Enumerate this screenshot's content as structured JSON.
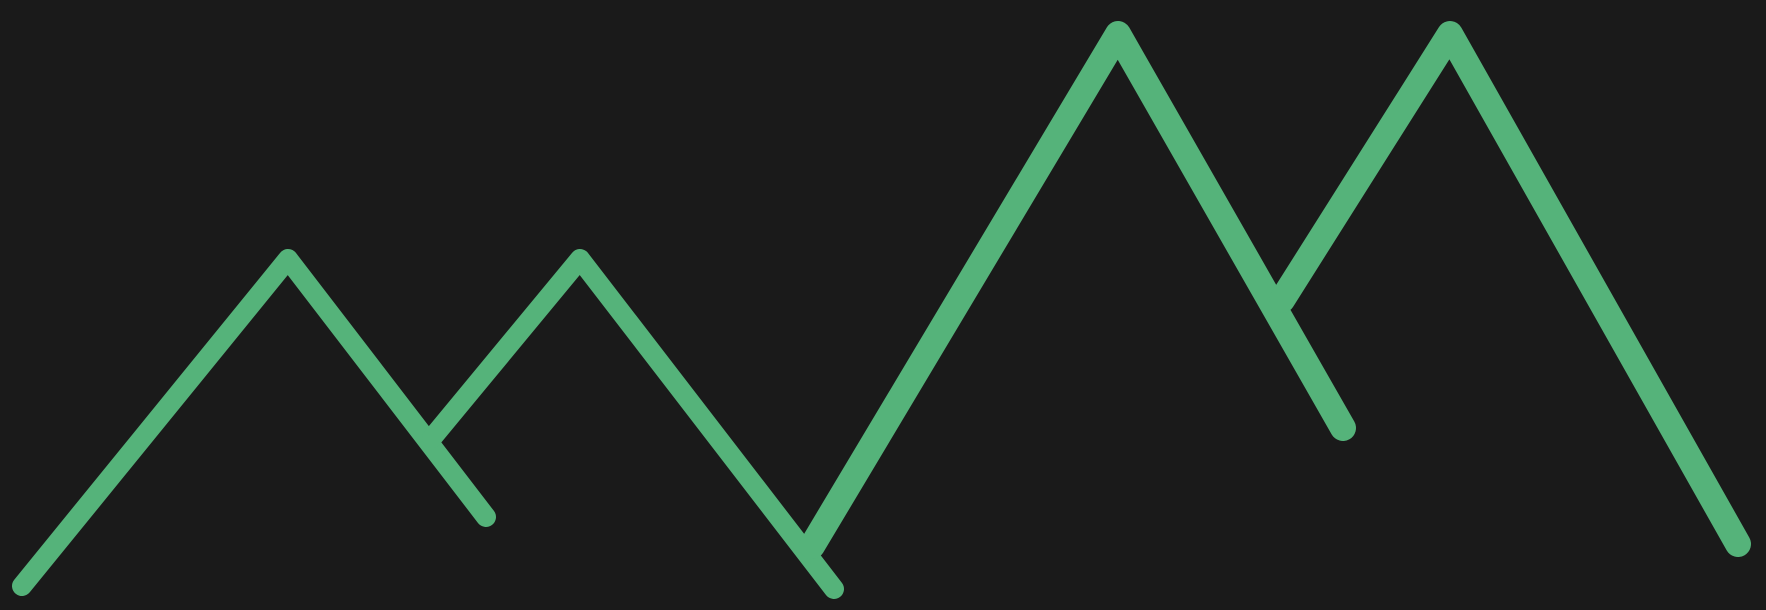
{
  "logo": {
    "name": "mountain-peaks-logo",
    "background_color": "#1a1a1a",
    "stroke_color": "#55b37a",
    "peak_count": 4
  }
}
